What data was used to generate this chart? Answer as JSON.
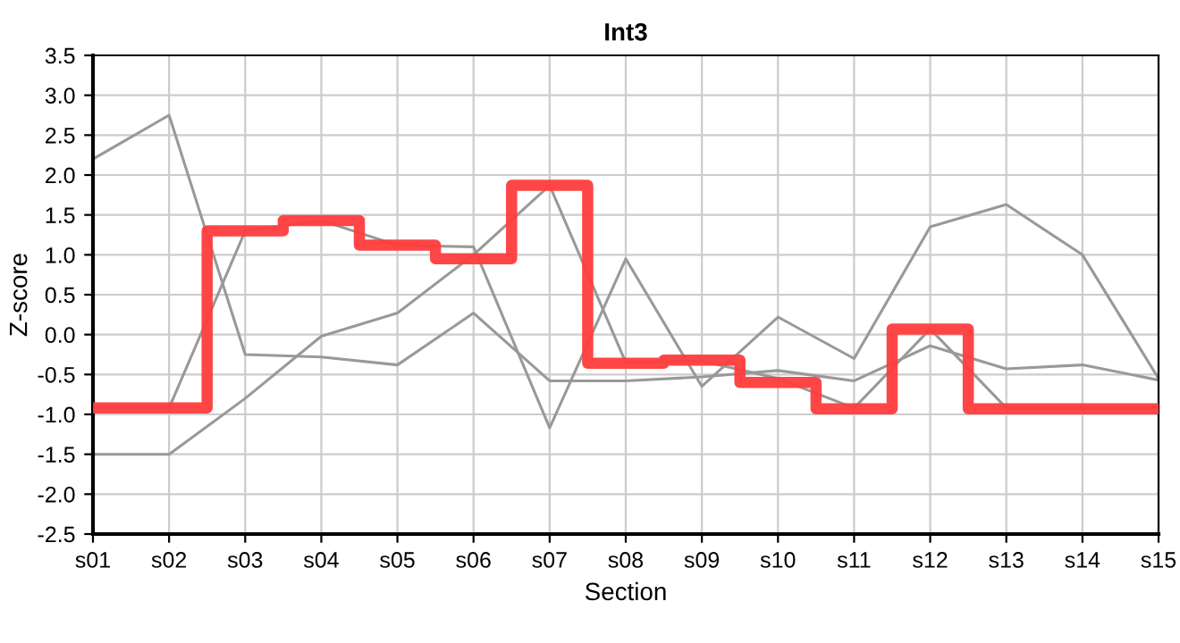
{
  "chart_data": {
    "type": "line",
    "title": "Int3",
    "xlabel": "Section",
    "ylabel": "Z-score",
    "categories": [
      "s01",
      "s02",
      "s03",
      "s04",
      "s05",
      "s06",
      "s07",
      "s08",
      "s09",
      "s10",
      "s11",
      "s12",
      "s13",
      "s14",
      "s15"
    ],
    "series": [
      {
        "color": "#999999",
        "values": [
          2.2,
          2.75,
          -0.25,
          -0.28,
          -0.38,
          0.27,
          -0.58,
          -0.58,
          -0.53,
          -0.45,
          -0.58,
          -0.14,
          -0.43,
          -0.38,
          -0.57
        ]
      },
      {
        "color": "#999999",
        "values": [
          -0.92,
          -0.92,
          1.3,
          1.43,
          1.12,
          1.1,
          -1.17,
          0.95,
          -0.65,
          0.22,
          -0.3,
          1.35,
          1.63,
          1.0,
          -0.55
        ]
      },
      {
        "color": "#999999",
        "values": [
          -1.5,
          -1.5,
          -0.8,
          -0.02,
          0.27,
          1.0,
          1.87,
          -0.35,
          -0.33,
          -0.55,
          -0.92,
          0.07,
          -0.92,
          -0.92,
          -0.92
        ]
      },
      {
        "type": "step",
        "color": "#ff3c3c",
        "values": [
          -0.92,
          -0.92,
          1.3,
          1.43,
          1.12,
          0.95,
          1.87,
          -0.36,
          -0.32,
          -0.6,
          -0.93,
          0.07,
          -0.93,
          -0.93,
          -0.93
        ]
      }
    ],
    "ylim": [
      -2.5,
      3.5
    ],
    "yticks": [
      -2.5,
      {
        "value": -2,
        "label": "-2.0"
      },
      -1.5,
      {
        "value": -1,
        "label": "-1.0"
      },
      -0.5,
      {
        "value": 0,
        "label": "0.0"
      },
      0.5,
      {
        "value": 1,
        "label": "1.0"
      },
      1.5,
      {
        "value": 2,
        "label": "2.0"
      },
      2.5,
      {
        "value": 3,
        "label": "3.0"
      },
      3.5
    ],
    "grid": true,
    "legend": false,
    "marker": "none",
    "line_style": "solid"
  }
}
